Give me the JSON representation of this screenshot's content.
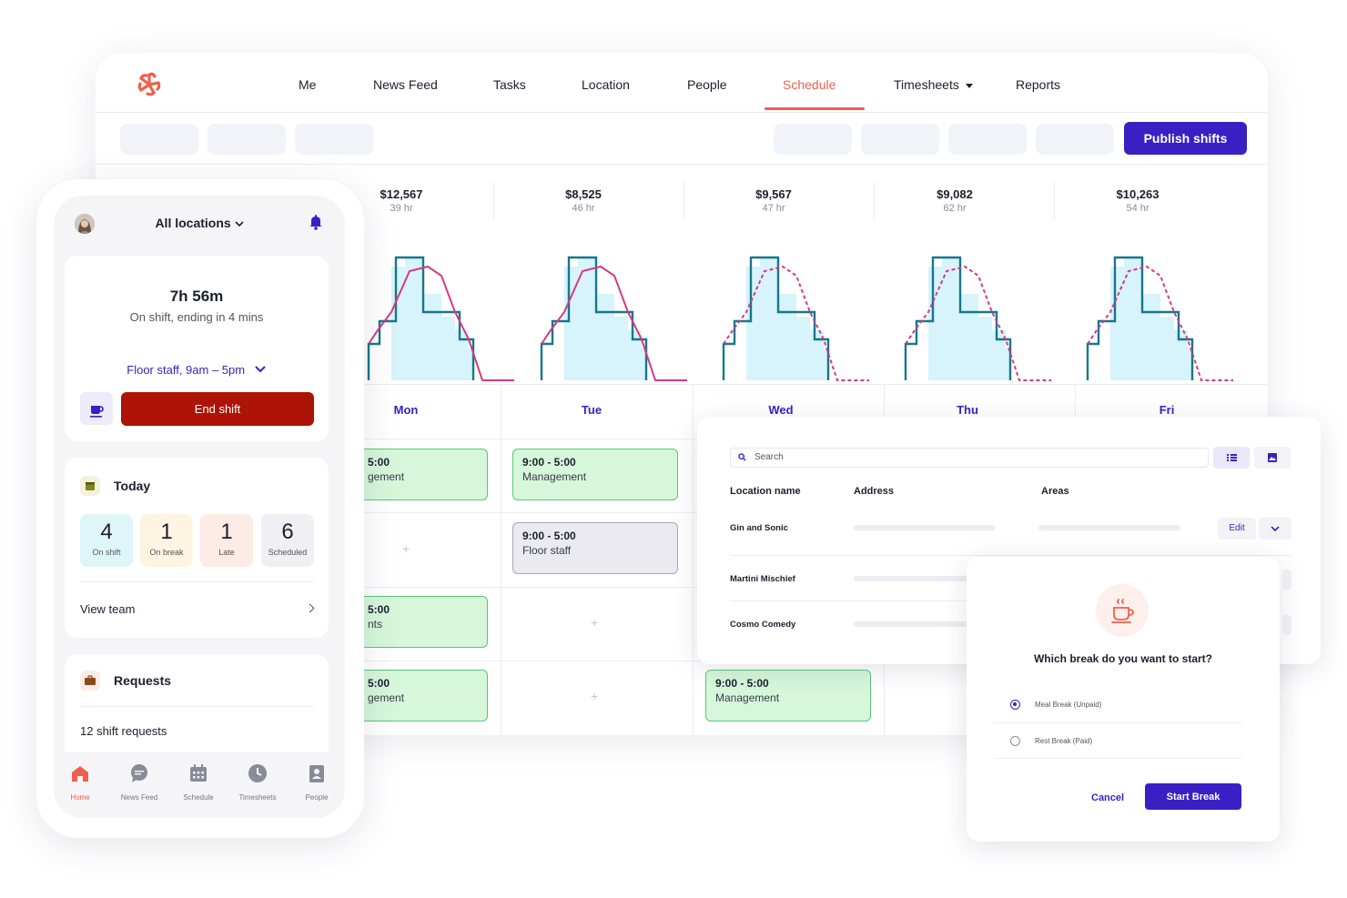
{
  "nav": {
    "items": [
      "Me",
      "News Feed",
      "Tasks",
      "Location",
      "People",
      "Schedule",
      "Timesheets",
      "Reports"
    ],
    "active": "Schedule"
  },
  "toolbar": {
    "publish_label": "Publish shifts"
  },
  "day_stats": [
    {
      "cost": "$12,567",
      "hours": "39 hr"
    },
    {
      "cost": "$8,525",
      "hours": "46 hr"
    },
    {
      "cost": "$9,567",
      "hours": "47 hr"
    },
    {
      "cost": "$9,082",
      "hours": "62 hr"
    },
    {
      "cost": "$10,263",
      "hours": "54 hr"
    }
  ],
  "days": [
    "Mon",
    "Tue",
    "Wed",
    "Thu",
    "Fri"
  ],
  "shifts": {
    "mon_1_time": "5:00",
    "mon_1_role": "gement",
    "mon_3_time": "5:00",
    "mon_3_role": "nts",
    "mon_4_time": "5:00",
    "mon_4_role": "gement",
    "tue_1_time": "9:00 - 5:00",
    "tue_1_role": "Management",
    "tue_2_time": "9:00 - 5:00",
    "tue_2_role": "Floor staff",
    "wed_4_time": "9:00 - 5:00",
    "wed_4_role": "Management"
  },
  "colors": {
    "brand": "#3a1fc4",
    "accent": "#ef5f4d",
    "end_shift": "#ad1407",
    "chart_fill": "#d7f3fb",
    "scheduled_line": "#16788a",
    "demand_line": "#d43a86"
  },
  "locations": {
    "search_placeholder": "Search",
    "columns": [
      "Location name",
      "Address",
      "Areas"
    ],
    "rows": [
      "Gin and Sonic",
      "Martini Mischief",
      "Cosmo Comedy"
    ],
    "edit_label": "Edit"
  },
  "break_modal": {
    "question": "Which break do you want to start?",
    "options": [
      "Meal Break (Unpaid)",
      "Rest Break (Paid)"
    ],
    "selected": "Meal Break (Unpaid)",
    "cancel_label": "Cancel",
    "start_label": "Start Break"
  },
  "phone": {
    "location": "All locations",
    "shift_duration": "7h 56m",
    "shift_status": "On shift, ending in 4 mins",
    "shift_role": "Floor staff, 9am – 5pm",
    "end_shift_label": "End shift",
    "today_title": "Today",
    "stats": [
      {
        "value": "4",
        "label": "On shift"
      },
      {
        "value": "1",
        "label": "On break"
      },
      {
        "value": "1",
        "label": "Late"
      },
      {
        "value": "6",
        "label": "Scheduled"
      }
    ],
    "view_team_label": "View team",
    "requests_title": "Requests",
    "requests_text": "12 shift requests",
    "tabs": [
      "Home",
      "News Feed",
      "Schedule",
      "Timesheets",
      "People"
    ],
    "active_tab": "Home"
  }
}
